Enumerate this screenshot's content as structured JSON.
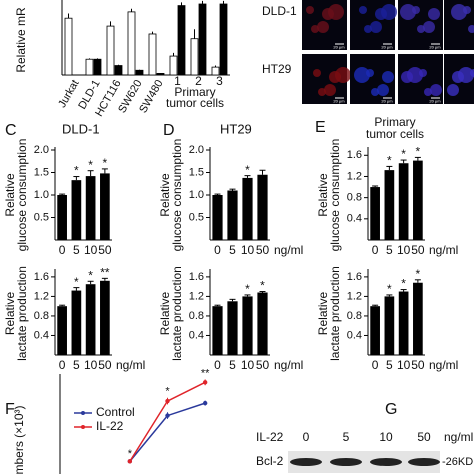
{
  "chart_data": [
    {
      "type": "grouped_bar",
      "ylabel": "Relative mR",
      "categories": [
        "Jurkat",
        "DLD-1",
        "HCT116",
        "SW620",
        "SW480",
        "1",
        "2",
        "3"
      ],
      "group_label": [
        "Primary",
        "tumor cells"
      ],
      "ylim": [
        0,
        4.5
      ],
      "series": [
        {
          "color": "#ffffff",
          "values": [
            3.6,
            1.0,
            3.1,
            4.0,
            2.6,
            1.2,
            2.3,
            0.5
          ],
          "errors": [
            0.3,
            0.05,
            0.3,
            0.2,
            0.15,
            0.2,
            0.6,
            0.1
          ]
        },
        {
          "color": "#000000",
          "values": [
            null,
            1.0,
            0.6,
            0.3,
            0.1,
            4.4,
            4.5,
            4.5
          ],
          "errors": [
            null,
            0.05,
            0.05,
            0.03,
            0.02,
            0.2,
            0.2,
            0.2
          ]
        }
      ]
    },
    {
      "type": "bar",
      "panel": "C",
      "title": "DLD-1",
      "ylabel": [
        "Relative",
        "glucose consumption"
      ],
      "categories": [
        "0",
        "5",
        "10",
        "50"
      ],
      "values": [
        1.0,
        1.33,
        1.42,
        1.48
      ],
      "errors": [
        0.02,
        0.08,
        0.12,
        0.1
      ],
      "significance": [
        null,
        "*",
        "*",
        "*"
      ],
      "color": "#000000",
      "ylim": [
        0,
        2.0
      ],
      "yticks": [
        0.5,
        {
          "value": 1.0,
          "label": "1.0"
        },
        1.5,
        {
          "value": 2.0,
          "label": "2.0"
        }
      ]
    },
    {
      "type": "bar",
      "ylabel": [
        "Relative",
        "lactate production"
      ],
      "categories": [
        "0",
        "5",
        "10",
        "50"
      ],
      "values": [
        1.0,
        1.32,
        1.45,
        1.52
      ],
      "errors": [
        0.02,
        0.06,
        0.06,
        0.05
      ],
      "significance": [
        null,
        "*",
        "*",
        "**"
      ],
      "color": "#000000",
      "ylim": [
        0,
        1.7
      ],
      "xunit": "ng/ml",
      "yticks": [
        0.4,
        0.8,
        1.2,
        1.6
      ]
    },
    {
      "type": "bar",
      "panel": "D",
      "title": "HT29",
      "ylabel": [
        "Relative",
        "glucose consumption"
      ],
      "categories": [
        "0",
        "5",
        "10",
        "50"
      ],
      "values": [
        1.0,
        1.1,
        1.38,
        1.45
      ],
      "errors": [
        0.02,
        0.03,
        0.05,
        0.1
      ],
      "significance": [
        null,
        null,
        "*",
        null
      ],
      "color": "#000000",
      "ylim": [
        0,
        2.0
      ],
      "xunit": "ng/ml",
      "yticks": [
        0.5,
        {
          "value": 1.0,
          "label": "1.0"
        },
        1.5,
        {
          "value": 2.0,
          "label": "2.0"
        }
      ]
    },
    {
      "type": "bar",
      "ylabel": [
        "Relative",
        "lactate production"
      ],
      "categories": [
        "0",
        "5",
        "10",
        "50"
      ],
      "values": [
        1.0,
        1.1,
        1.2,
        1.28
      ],
      "errors": [
        0.02,
        0.04,
        0.03,
        0.02
      ],
      "significance": [
        null,
        null,
        "*",
        "*"
      ],
      "color": "#000000",
      "ylim": [
        0,
        1.7
      ],
      "xunit": "ng/ml",
      "yticks": [
        0.4,
        0.8,
        1.2,
        1.6
      ]
    },
    {
      "type": "bar",
      "panel": "E",
      "title": [
        "Primary",
        "tumor cells"
      ],
      "ylabel": [
        "Relative",
        "glucose consumption"
      ],
      "categories": [
        "0",
        "5",
        "10",
        "50"
      ],
      "values": [
        1.0,
        1.32,
        1.45,
        1.5
      ],
      "errors": [
        0.02,
        0.07,
        0.06,
        0.06
      ],
      "significance": [
        null,
        "*",
        "*",
        "*"
      ],
      "color": "#000000",
      "ylim": [
        0,
        1.7
      ],
      "xunit": "ng/ml",
      "yticks": [
        0.4,
        0.8,
        1.2,
        1.6
      ]
    },
    {
      "type": "bar",
      "ylabel": [
        "Relative",
        "lactate production"
      ],
      "categories": [
        "0",
        "5",
        "10",
        "50"
      ],
      "values": [
        1.0,
        1.2,
        1.3,
        1.48
      ],
      "errors": [
        0.02,
        0.03,
        0.04,
        0.06
      ],
      "significance": [
        null,
        "*",
        "*",
        "*"
      ],
      "color": "#000000",
      "ylim": [
        0,
        1.7
      ],
      "xunit": "ng/ml",
      "yticks": [
        0.4,
        0.8,
        1.2,
        1.6
      ]
    },
    {
      "type": "line",
      "panel": "F",
      "ylabel": "mbers (×10³)",
      "categories": [
        null,
        null,
        null
      ],
      "ylim": [
        0,
        25
      ],
      "series": [
        {
          "name": "Control",
          "color": "#2b3a9c",
          "values": [
            4,
            15,
            18
          ],
          "errors": [
            0.3,
            0.8,
            0.6
          ]
        },
        {
          "name": "IL-22",
          "color": "#e0242a",
          "values": [
            4,
            18.5,
            23
          ],
          "errors": [
            0.3,
            0.8,
            0.7
          ],
          "significance": [
            "*",
            "*",
            "**"
          ]
        }
      ]
    }
  ],
  "micrographs": {
    "rows": [
      "DLD-1",
      "HT29"
    ],
    "scale_bar": "20 μm"
  },
  "blot": {
    "panel": "G",
    "treatment": "IL-22",
    "doses": [
      "0",
      "5",
      "10",
      "50"
    ],
    "unit": "ng/ml",
    "protein": "Bcl-2",
    "size": "-26KD"
  }
}
